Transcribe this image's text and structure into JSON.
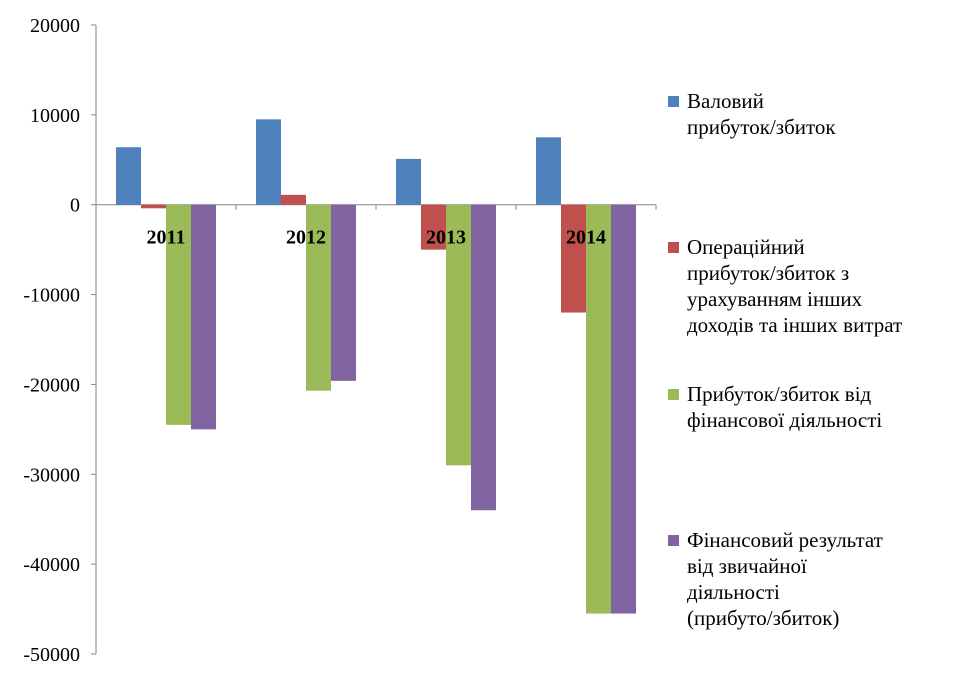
{
  "chart_data": {
    "type": "bar",
    "categories": [
      "2011",
      "2012",
      "2013",
      "2014"
    ],
    "series": [
      {
        "name": "Валовий прибуток/збиток",
        "lines": [
          "Валовий",
          "прибуток/збиток"
        ],
        "color": "#4f81bd",
        "values": [
          6400,
          9500,
          5100,
          7500
        ]
      },
      {
        "name": "Операційний прибуток/збиток з урахуванням інших доходів та інших витрат",
        "lines": [
          "Операційний",
          "прибуток/збиток з",
          "урахуванням інших",
          "доходів та інших витрат"
        ],
        "color": "#c0504d",
        "values": [
          -400,
          1100,
          -5000,
          -12000
        ]
      },
      {
        "name": "Прибуток/збиток від фінансової діяльності",
        "lines": [
          "Прибуток/збиток від",
          "фінансової діяльності"
        ],
        "color": "#9bbb59",
        "values": [
          -24500,
          -20700,
          -29000,
          -45500
        ]
      },
      {
        "name": "Фінансовий результат від звичайної діяльності (прибуто/збиток)",
        "lines": [
          "Фінансовий результат",
          "від звичайної",
          "діяльності",
          "(прибуто/збиток)"
        ],
        "color": "#8064a2",
        "values": [
          -25000,
          -19600,
          -34000,
          -45500
        ]
      }
    ],
    "ylim": [
      -50000,
      20000
    ],
    "yticks": [
      "20000",
      "10000",
      "0",
      "-10000",
      "-20000",
      "-30000",
      "-40000",
      "-50000"
    ],
    "grid": false,
    "legend_position": "right",
    "title": "",
    "xlabel": "",
    "ylabel": ""
  }
}
